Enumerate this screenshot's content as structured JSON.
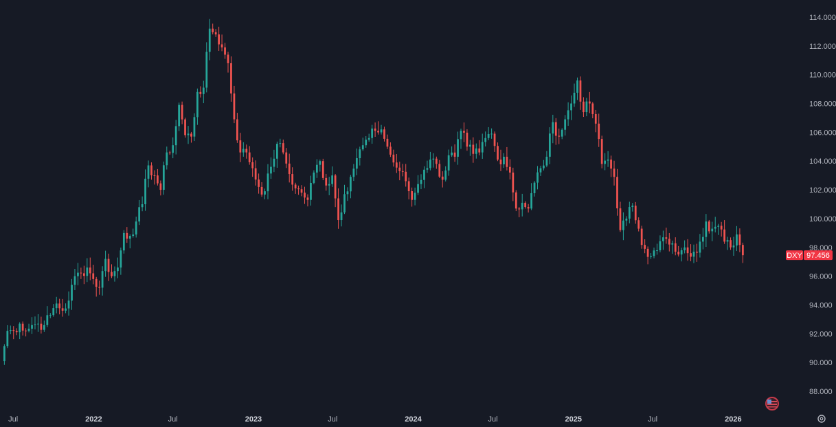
{
  "chart_data": {
    "type": "candlestick",
    "symbol": "DXY",
    "last_price": "97.456",
    "ylim": [
      87,
      115
    ],
    "y_ticks": [
      "114.000",
      "112.000",
      "110.000",
      "108.000",
      "106.000",
      "104.000",
      "102.000",
      "100.000",
      "98.000",
      "96.000",
      "94.000",
      "92.000",
      "90.000",
      "88.000"
    ],
    "x_ticks": [
      {
        "label": "Jul",
        "date": "2021-07-01",
        "bold": false
      },
      {
        "label": "2022",
        "date": "2022-01-01",
        "bold": true
      },
      {
        "label": "Jul",
        "date": "2022-07-01",
        "bold": false
      },
      {
        "label": "2023",
        "date": "2023-01-01",
        "bold": true
      },
      {
        "label": "Jul",
        "date": "2023-07-01",
        "bold": false
      },
      {
        "label": "2024",
        "date": "2024-01-01",
        "bold": true
      },
      {
        "label": "Jul",
        "date": "2024-07-01",
        "bold": false
      },
      {
        "label": "2025",
        "date": "2025-01-01",
        "bold": true
      },
      {
        "label": "Jul",
        "date": "2025-07-01",
        "bold": false
      },
      {
        "label": "2026",
        "date": "2026-01-01",
        "bold": true
      }
    ],
    "x_range": [
      "2021-06-01",
      "2026-04-25"
    ],
    "colors": {
      "up": "#26a69a",
      "down": "#ef5350",
      "background": "#161a25",
      "badge": "#f23645"
    },
    "series": [
      {
        "name": "DXY",
        "closes": [
          [
            "2021-06-04",
            90.1
          ],
          [
            "2021-06-18",
            92.2
          ],
          [
            "2021-07-02",
            92.2
          ],
          [
            "2021-07-16",
            92.7
          ],
          [
            "2021-07-30",
            92.2
          ],
          [
            "2021-08-13",
            92.6
          ],
          [
            "2021-08-27",
            92.7
          ],
          [
            "2021-09-10",
            92.6
          ],
          [
            "2021-09-24",
            93.3
          ],
          [
            "2021-10-08",
            94.1
          ],
          [
            "2021-10-22",
            93.6
          ],
          [
            "2021-11-05",
            94.3
          ],
          [
            "2021-11-19",
            96.0
          ],
          [
            "2021-12-03",
            96.2
          ],
          [
            "2021-12-17",
            96.6
          ],
          [
            "2021-12-31",
            95.8
          ],
          [
            "2022-01-14",
            95.2
          ],
          [
            "2022-01-28",
            97.2
          ],
          [
            "2022-02-11",
            96.0
          ],
          [
            "2022-02-25",
            96.6
          ],
          [
            "2022-03-11",
            99.0
          ],
          [
            "2022-03-25",
            98.8
          ],
          [
            "2022-04-08",
            99.8
          ],
          [
            "2022-04-22",
            101.0
          ],
          [
            "2022-05-06",
            103.7
          ],
          [
            "2022-05-20",
            103.0
          ],
          [
            "2022-06-03",
            102.0
          ],
          [
            "2022-06-17",
            104.6
          ],
          [
            "2022-07-01",
            105.1
          ],
          [
            "2022-07-15",
            107.9
          ],
          [
            "2022-07-29",
            105.8
          ],
          [
            "2022-08-12",
            105.7
          ],
          [
            "2022-08-26",
            108.8
          ],
          [
            "2022-09-09",
            109.1
          ],
          [
            "2022-09-23",
            113.2
          ],
          [
            "2022-10-07",
            112.8
          ],
          [
            "2022-10-21",
            111.9
          ],
          [
            "2022-11-04",
            110.8
          ],
          [
            "2022-11-18",
            106.9
          ],
          [
            "2022-12-02",
            104.6
          ],
          [
            "2022-12-16",
            104.6
          ],
          [
            "2022-12-30",
            103.5
          ],
          [
            "2023-01-13",
            102.2
          ],
          [
            "2023-01-27",
            101.9
          ],
          [
            "2023-02-10",
            103.6
          ],
          [
            "2023-02-24",
            105.2
          ],
          [
            "2023-03-10",
            104.6
          ],
          [
            "2023-03-24",
            103.1
          ],
          [
            "2023-04-07",
            102.1
          ],
          [
            "2023-04-21",
            101.8
          ],
          [
            "2023-05-05",
            101.3
          ],
          [
            "2023-05-19",
            103.2
          ],
          [
            "2023-06-02",
            104.0
          ],
          [
            "2023-06-16",
            102.3
          ],
          [
            "2023-06-30",
            103.0
          ],
          [
            "2023-07-14",
            99.9
          ],
          [
            "2023-07-28",
            101.7
          ],
          [
            "2023-08-11",
            102.9
          ],
          [
            "2023-08-25",
            104.2
          ],
          [
            "2023-09-08",
            105.1
          ],
          [
            "2023-09-22",
            105.6
          ],
          [
            "2023-10-06",
            106.1
          ],
          [
            "2023-10-20",
            106.2
          ],
          [
            "2023-11-03",
            105.0
          ],
          [
            "2023-11-17",
            103.9
          ],
          [
            "2023-12-01",
            103.3
          ],
          [
            "2023-12-15",
            102.6
          ],
          [
            "2023-12-29",
            101.3
          ],
          [
            "2024-01-12",
            102.4
          ],
          [
            "2024-01-26",
            103.4
          ],
          [
            "2024-02-09",
            104.1
          ],
          [
            "2024-02-23",
            103.8
          ],
          [
            "2024-03-08",
            102.7
          ],
          [
            "2024-03-22",
            104.4
          ],
          [
            "2024-04-05",
            104.3
          ],
          [
            "2024-04-19",
            106.1
          ],
          [
            "2024-05-03",
            105.0
          ],
          [
            "2024-05-17",
            104.5
          ],
          [
            "2024-05-31",
            104.6
          ],
          [
            "2024-06-14",
            105.6
          ],
          [
            "2024-06-28",
            105.9
          ],
          [
            "2024-07-12",
            104.1
          ],
          [
            "2024-07-26",
            104.3
          ],
          [
            "2024-08-09",
            103.2
          ],
          [
            "2024-08-23",
            100.7
          ],
          [
            "2024-09-06",
            101.1
          ],
          [
            "2024-09-20",
            100.7
          ],
          [
            "2024-10-04",
            102.5
          ],
          [
            "2024-10-18",
            103.5
          ],
          [
            "2024-11-01",
            104.3
          ],
          [
            "2024-11-15",
            106.7
          ],
          [
            "2024-11-29",
            105.7
          ],
          [
            "2024-12-13",
            106.9
          ],
          [
            "2024-12-27",
            108.0
          ],
          [
            "2025-01-10",
            109.6
          ],
          [
            "2025-01-24",
            107.4
          ],
          [
            "2025-02-07",
            108.0
          ],
          [
            "2025-02-21",
            106.6
          ],
          [
            "2025-03-07",
            103.8
          ],
          [
            "2025-03-21",
            104.1
          ],
          [
            "2025-04-04",
            102.9
          ],
          [
            "2025-04-18",
            99.2
          ],
          [
            "2025-05-02",
            100.0
          ],
          [
            "2025-05-16",
            100.9
          ],
          [
            "2025-05-30",
            99.3
          ],
          [
            "2025-06-13",
            97.9
          ],
          [
            "2025-06-27",
            97.4
          ],
          [
            "2025-07-11",
            97.8
          ],
          [
            "2025-07-25",
            98.7
          ],
          [
            "2025-08-08",
            98.2
          ],
          [
            "2025-08-22",
            97.7
          ],
          [
            "2025-09-05",
            97.8
          ],
          [
            "2025-09-19",
            97.6
          ],
          [
            "2025-10-03",
            97.7
          ],
          [
            "2025-10-17",
            98.4
          ],
          [
            "2025-10-31",
            99.8
          ],
          [
            "2025-11-14",
            99.3
          ],
          [
            "2025-11-28",
            99.5
          ],
          [
            "2025-12-12",
            98.4
          ],
          [
            "2025-12-26",
            98.0
          ],
          [
            "2026-01-09",
            98.9
          ],
          [
            "2026-01-23",
            97.456
          ]
        ]
      }
    ]
  }
}
